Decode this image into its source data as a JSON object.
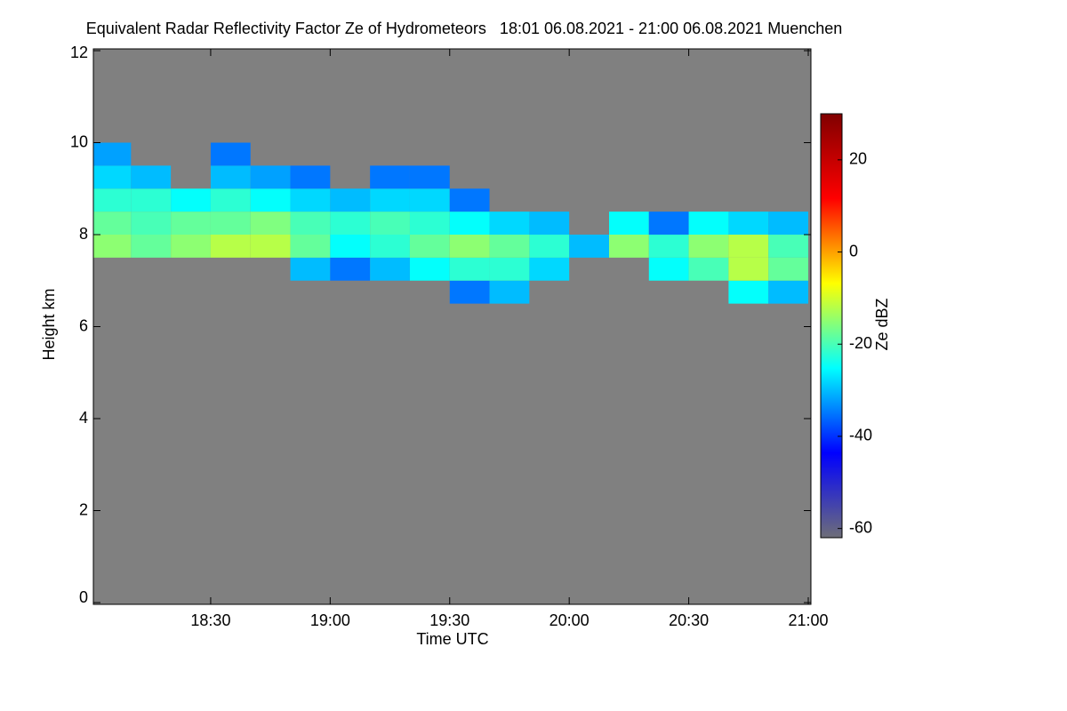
{
  "chart_data": {
    "type": "heatmap",
    "title": "Equivalent Radar Reflectivity Factor Ze of Hydrometeors   18:01 06.08.2021 - 21:00 06.08.2021 Muenchen",
    "xlabel": "Time UTC",
    "ylabel": "Height km",
    "zlabel": "Ze dBZ",
    "x": [
      1085,
      1095,
      1105,
      1115,
      1125,
      1135,
      1145,
      1155,
      1165,
      1175,
      1185,
      1195,
      1205,
      1215,
      1225,
      1235,
      1245,
      1255
    ],
    "y": [
      6.75,
      7.25,
      7.75,
      8.25,
      8.75,
      9.25,
      9.75
    ],
    "z": [
      [
        null,
        null,
        null,
        null,
        null,
        null,
        null,
        null,
        null,
        -35,
        -30,
        null,
        null,
        null,
        null,
        null,
        -25,
        -30
      ],
      [
        null,
        null,
        null,
        null,
        null,
        -30,
        -35,
        -30,
        -25,
        -22,
        -22,
        -28,
        null,
        null,
        -25,
        -20,
        -12,
        -18
      ],
      [
        -15,
        -18,
        -15,
        -12,
        -12,
        -18,
        -25,
        -22,
        -18,
        -15,
        -18,
        -22,
        -30,
        -15,
        -22,
        -15,
        -12,
        -20
      ],
      [
        -18,
        -20,
        -18,
        -18,
        -16,
        -20,
        -22,
        -20,
        -22,
        -25,
        -28,
        -30,
        null,
        -25,
        -35,
        -25,
        -28,
        -30
      ],
      [
        -22,
        -22,
        -25,
        -22,
        -25,
        -28,
        -30,
        -28,
        -28,
        -35,
        null,
        null,
        null,
        null,
        null,
        null,
        null,
        null
      ],
      [
        -28,
        -30,
        null,
        -30,
        -32,
        -35,
        null,
        -35,
        -35,
        null,
        null,
        null,
        null,
        null,
        null,
        null,
        null,
        null
      ],
      [
        -32,
        null,
        null,
        -35,
        null,
        null,
        null,
        null,
        null,
        null,
        null,
        null,
        null,
        null,
        null,
        null,
        null,
        null
      ]
    ],
    "xlim": [
      1081,
      1260
    ],
    "xticks": [
      {
        "value": 1110,
        "label": "18:30"
      },
      {
        "value": 1140,
        "label": "19:00"
      },
      {
        "value": 1170,
        "label": "19:30"
      },
      {
        "value": 1200,
        "label": "20:00"
      },
      {
        "value": 1230,
        "label": "20:30"
      },
      {
        "value": 1260,
        "label": "21:00"
      }
    ],
    "ylim": [
      0,
      12
    ],
    "yticks": [
      0,
      2,
      4,
      6,
      8,
      10,
      12
    ],
    "zlim": [
      -62,
      30
    ],
    "zticks": [
      -60,
      -40,
      -20,
      0,
      20
    ],
    "background": "#808080",
    "colorscale": [
      "#6e6e78",
      "#0000ff",
      "#00ffff",
      "#ffff00",
      "#ff0000",
      "#800000"
    ]
  }
}
